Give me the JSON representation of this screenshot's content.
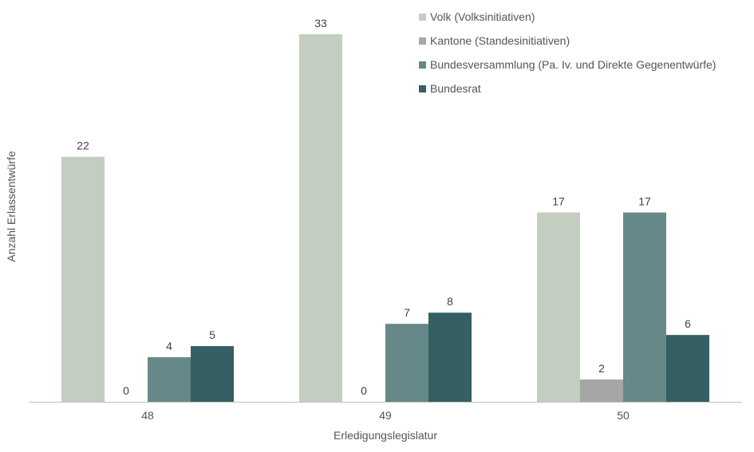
{
  "chart_data": {
    "type": "bar",
    "categories": [
      "48",
      "49",
      "50"
    ],
    "series": [
      {
        "name": "Volk (Volksinitiativen)",
        "values": [
          22,
          33,
          17
        ],
        "color": "#c3cec1"
      },
      {
        "name": "Kantone (Standesinitiativen)",
        "values": [
          0,
          0,
          2
        ],
        "color": "#a6a6a6"
      },
      {
        "name": "Bundesversammlung (Pa. Iv. und Direkte Gegenentwürfe)",
        "values": [
          4,
          7,
          17
        ],
        "color": "#668888"
      },
      {
        "name": "Bundesrat",
        "values": [
          5,
          8,
          6
        ],
        "color": "#345f63"
      }
    ],
    "xlabel": "Erledigungslegislatur",
    "ylabel": "Anzahl Erlassentwürfe",
    "ylim": [
      0,
      33
    ],
    "data_labels": true,
    "grid": false,
    "legend_position": "top-right"
  }
}
